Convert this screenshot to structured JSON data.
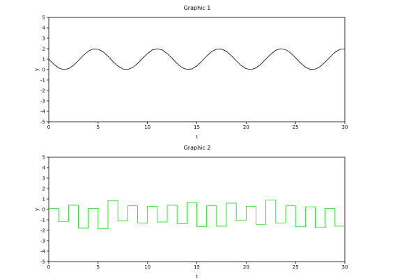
{
  "chart_data": [
    {
      "type": "line",
      "title": "Graphic 1",
      "xlabel": "t",
      "ylabel": "y",
      "xlim": [
        0,
        30
      ],
      "ylim": [
        -5,
        5
      ],
      "xticks": [
        0,
        5,
        10,
        15,
        20,
        25,
        30
      ],
      "yticks": [
        -5,
        -4,
        -3,
        -2,
        -1,
        0,
        1,
        2,
        3,
        4,
        5
      ],
      "grid": false,
      "series": [
        {
          "color": "#000000",
          "style": "smooth",
          "points": [
            [
              0,
              1.0
            ],
            [
              0.5,
              0.52
            ],
            [
              1,
              0.16
            ],
            [
              1.5,
              0.0
            ],
            [
              2,
              0.09
            ],
            [
              2.5,
              0.4
            ],
            [
              3,
              0.86
            ],
            [
              3.5,
              1.35
            ],
            [
              4,
              1.76
            ],
            [
              4.5,
              1.98
            ],
            [
              5,
              1.96
            ],
            [
              5.5,
              1.71
            ],
            [
              6,
              1.28
            ],
            [
              6.5,
              0.78
            ],
            [
              7,
              0.34
            ],
            [
              7.5,
              0.06
            ],
            [
              8,
              0.01
            ],
            [
              8.5,
              0.2
            ],
            [
              9,
              0.59
            ],
            [
              9.5,
              1.08
            ],
            [
              10,
              1.54
            ],
            [
              10.5,
              1.88
            ],
            [
              11,
              2.0
            ],
            [
              11.5,
              1.88
            ],
            [
              12,
              1.54
            ],
            [
              12.5,
              1.08
            ],
            [
              13,
              0.58
            ],
            [
              13.5,
              0.19
            ],
            [
              14,
              0.01
            ],
            [
              14.5,
              0.07
            ],
            [
              15,
              0.35
            ],
            [
              15.5,
              0.8
            ],
            [
              16,
              1.29
            ],
            [
              16.5,
              1.72
            ],
            [
              17,
              1.96
            ],
            [
              17.5,
              1.97
            ],
            [
              18,
              1.75
            ],
            [
              18.5,
              1.33
            ],
            [
              19,
              0.84
            ],
            [
              19.5,
              0.39
            ],
            [
              20,
              0.09
            ],
            [
              20.5,
              0.0
            ],
            [
              21,
              0.16
            ],
            [
              21.5,
              0.53
            ],
            [
              22,
              1.01
            ],
            [
              22.5,
              1.48
            ],
            [
              23,
              1.85
            ],
            [
              23.5,
              2.0
            ],
            [
              24,
              1.91
            ],
            [
              24.5,
              1.6
            ],
            [
              25,
              1.13
            ],
            [
              25.5,
              0.64
            ],
            [
              26,
              0.24
            ],
            [
              26.5,
              0.02
            ],
            [
              27,
              0.04
            ],
            [
              27.5,
              0.29
            ],
            [
              28,
              0.71
            ],
            [
              28.5,
              1.19
            ],
            [
              29,
              1.65
            ],
            [
              29.5,
              1.94
            ],
            [
              30,
              1.99
            ]
          ]
        }
      ]
    },
    {
      "type": "line",
      "title": "Graphic 2",
      "xlabel": "t",
      "ylabel": "y",
      "xlim": [
        0,
        30
      ],
      "ylim": [
        -5,
        5
      ],
      "xticks": [
        0,
        5,
        10,
        15,
        20,
        25,
        30
      ],
      "yticks": [
        -5,
        -4,
        -3,
        -2,
        -1,
        0,
        1,
        2,
        3,
        4,
        5
      ],
      "grid": false,
      "series": [
        {
          "color": "#00e000",
          "style": "step",
          "points": [
            [
              0,
              0.1
            ],
            [
              1,
              -1.15
            ],
            [
              2,
              0.4
            ],
            [
              3,
              -1.8
            ],
            [
              4,
              0.1
            ],
            [
              5,
              -1.85
            ],
            [
              6,
              0.85
            ],
            [
              7,
              -1.1
            ],
            [
              8,
              0.35
            ],
            [
              9,
              -1.3
            ],
            [
              10,
              0.3
            ],
            [
              11,
              -1.2
            ],
            [
              12,
              0.4
            ],
            [
              13,
              -1.35
            ],
            [
              14,
              0.65
            ],
            [
              15,
              -1.65
            ],
            [
              16,
              0.35
            ],
            [
              17,
              -1.6
            ],
            [
              18,
              0.6
            ],
            [
              19,
              -1.05
            ],
            [
              20,
              0.3
            ],
            [
              21,
              -1.45
            ],
            [
              22,
              0.9
            ],
            [
              23,
              -1.3
            ],
            [
              24,
              0.35
            ],
            [
              25,
              -1.65
            ],
            [
              26,
              0.25
            ],
            [
              27,
              -1.75
            ],
            [
              28,
              0.1
            ],
            [
              29,
              -1.6
            ],
            [
              30,
              -1.6
            ]
          ]
        }
      ]
    }
  ]
}
